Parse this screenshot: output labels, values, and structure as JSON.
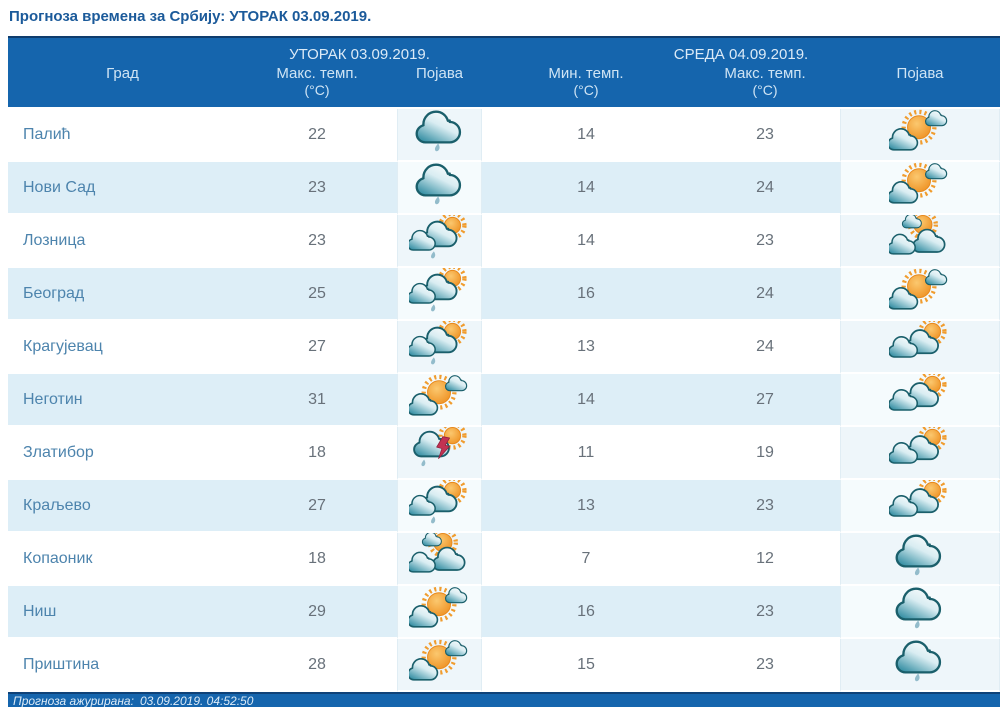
{
  "page_title": "Прогноза времена за Србију: УТОРАК  03.09.2019.",
  "colors": {
    "header_bg": "#1565ad",
    "header_text": "#cfe4f4",
    "row_alt_bg": "#ddeef7",
    "city_text": "#4d84ad",
    "temp_text": "#68717a",
    "title_text": "#1b5a9a",
    "sun_orange": "#f09c2e",
    "cloud_teal": "#2f8496",
    "thunder_red": "#c23252"
  },
  "table": {
    "groups": [
      {
        "label": "УТОРАК  03.09.2019."
      },
      {
        "label": "СРЕДА  04.09.2019."
      }
    ],
    "columns": {
      "city": "Град",
      "tue_max": "Макс. темп.",
      "tue_max_unit": "(°C)",
      "tue_icon": "Појава",
      "wed_min": "Мин. темп.",
      "wed_min_unit": "(°C)",
      "wed_max": "Макс. темп.",
      "wed_max_unit": "(°C)",
      "wed_icon": "Појава"
    },
    "rows": [
      {
        "city": "Палић",
        "tue_max": "22",
        "tue_icon": "cloud-light-rain",
        "wed_min": "14",
        "wed_max": "23",
        "wed_icon": "sun-with-clouds"
      },
      {
        "city": "Нови Сад",
        "tue_max": "23",
        "tue_icon": "cloud-light-rain",
        "wed_min": "14",
        "wed_max": "24",
        "wed_icon": "sun-with-clouds"
      },
      {
        "city": "Лозница",
        "tue_max": "23",
        "tue_icon": "clouds-sun-light-rain",
        "wed_min": "14",
        "wed_max": "23",
        "wed_icon": "clouds-sun-peek"
      },
      {
        "city": "Београд",
        "tue_max": "25",
        "tue_icon": "clouds-sun-light-rain",
        "wed_min": "16",
        "wed_max": "24",
        "wed_icon": "sun-with-clouds"
      },
      {
        "city": "Крагујевац",
        "tue_max": "27",
        "tue_icon": "clouds-sun-light-rain",
        "wed_min": "13",
        "wed_max": "24",
        "wed_icon": "clouds-with-sun"
      },
      {
        "city": "Неготин",
        "tue_max": "31",
        "tue_icon": "sun-with-clouds",
        "wed_min": "14",
        "wed_max": "27",
        "wed_icon": "clouds-with-sun"
      },
      {
        "city": "Златибор",
        "tue_max": "18",
        "tue_icon": "thunderstorm-with-sun",
        "wed_min": "11",
        "wed_max": "19",
        "wed_icon": "clouds-with-sun"
      },
      {
        "city": "Краљево",
        "tue_max": "27",
        "tue_icon": "clouds-sun-light-rain",
        "wed_min": "13",
        "wed_max": "23",
        "wed_icon": "clouds-with-sun"
      },
      {
        "city": "Копаоник",
        "tue_max": "18",
        "tue_icon": "clouds-sun-peek",
        "wed_min": "7",
        "wed_max": "12",
        "wed_icon": "cloud-light-rain"
      },
      {
        "city": "Ниш",
        "tue_max": "29",
        "tue_icon": "sun-with-clouds",
        "wed_min": "16",
        "wed_max": "23",
        "wed_icon": "cloud-light-rain"
      },
      {
        "city": "Приштина",
        "tue_max": "28",
        "tue_icon": "sun-with-clouds",
        "wed_min": "15",
        "wed_max": "23",
        "wed_icon": "cloud-light-rain"
      }
    ]
  },
  "footer": {
    "updated_label": "Прогноза ажурирана:",
    "updated_value": "03.09.2019. 04:52:50"
  }
}
